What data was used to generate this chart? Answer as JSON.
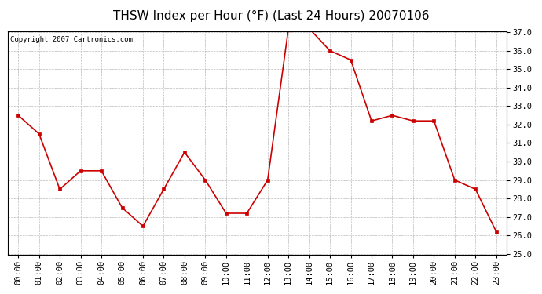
{
  "title": "THSW Index per Hour (°F) (Last 24 Hours) 20070106",
  "copyright_text": "Copyright 2007 Cartronics.com",
  "hours": [
    "00:00",
    "01:00",
    "02:00",
    "03:00",
    "04:00",
    "05:00",
    "06:00",
    "07:00",
    "08:00",
    "09:00",
    "10:00",
    "11:00",
    "12:00",
    "13:00",
    "14:00",
    "15:00",
    "16:00",
    "17:00",
    "18:00",
    "19:00",
    "20:00",
    "21:00",
    "22:00",
    "23:00"
  ],
  "values": [
    32.5,
    31.5,
    28.5,
    29.5,
    29.5,
    27.5,
    26.5,
    28.5,
    30.5,
    29.0,
    27.2,
    27.2,
    29.0,
    37.2,
    37.2,
    36.0,
    35.5,
    32.2,
    32.5,
    32.2,
    32.2,
    29.0,
    28.5,
    26.2
  ],
  "ytick_min": 25.0,
  "ytick_max": 37.0,
  "ytick_step": 1.0,
  "line_color": "#cc0000",
  "marker": "s",
  "marker_size": 3,
  "background_color": "#ffffff",
  "plot_bg_color": "#ffffff",
  "grid_color": "#aaaaaa",
  "title_fontsize": 11,
  "tick_fontsize": 7.5,
  "copyright_fontsize": 6.5
}
